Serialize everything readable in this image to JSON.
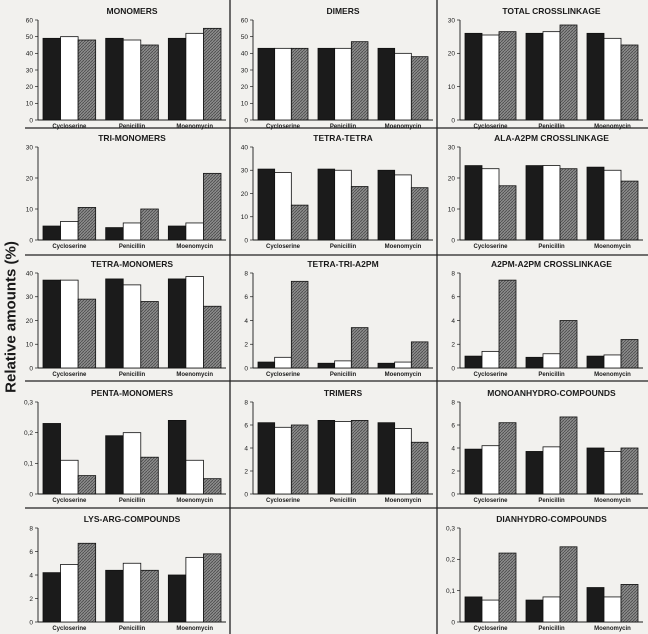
{
  "figure": {
    "ylabel": "Relative amounts (%)"
  },
  "colors": {
    "bar_dark": "#1b1b1b",
    "bar_light": "#ffffff",
    "bar_hatched": "#8c8c8c",
    "background": "#f2f1ee"
  },
  "chart_data": [
    {
      "type": "bar",
      "title": "MONOMERS",
      "categories": [
        "Cycloserine",
        "Penicillin",
        "Moenomycin"
      ],
      "yticks": [
        "0",
        "10",
        "20",
        "30",
        "40",
        "50",
        "60"
      ],
      "ylim": [
        0,
        60
      ],
      "series": [
        {
          "values": [
            49,
            49,
            49
          ]
        },
        {
          "values": [
            50,
            48,
            52
          ]
        },
        {
          "values": [
            48,
            45,
            55
          ]
        }
      ]
    },
    {
      "type": "bar",
      "title": "DIMERS",
      "categories": [
        "Cycloserine",
        "Penicillin",
        "Moenomycin"
      ],
      "yticks": [
        "0",
        "10",
        "20",
        "30",
        "40",
        "50",
        "60"
      ],
      "ylim": [
        0,
        60
      ],
      "series": [
        {
          "values": [
            43,
            43,
            43
          ]
        },
        {
          "values": [
            43,
            43,
            40
          ]
        },
        {
          "values": [
            43,
            47,
            38
          ]
        }
      ]
    },
    {
      "type": "bar",
      "title": "TOTAL CROSSLINKAGE",
      "categories": [
        "Cycloserine",
        "Penicillin",
        "Moenomycin"
      ],
      "yticks": [
        "0",
        "10",
        "20",
        "30"
      ],
      "ylim": [
        0,
        30
      ],
      "series": [
        {
          "values": [
            26,
            26,
            26
          ]
        },
        {
          "values": [
            25.5,
            26.5,
            24.5
          ]
        },
        {
          "values": [
            26.5,
            28.5,
            22.5
          ]
        }
      ]
    },
    {
      "type": "bar",
      "title": "TRI-MONOMERS",
      "categories": [
        "Cycloserine",
        "Penicillin",
        "Moenomycin"
      ],
      "yticks": [
        "0",
        "10",
        "20",
        "30"
      ],
      "ylim": [
        0,
        30
      ],
      "series": [
        {
          "values": [
            4.5,
            4,
            4.5
          ]
        },
        {
          "values": [
            6,
            5.5,
            5.5
          ]
        },
        {
          "values": [
            10.5,
            10,
            21.5
          ]
        }
      ]
    },
    {
      "type": "bar",
      "title": "TETRA-TETRA",
      "categories": [
        "Cycloserine",
        "Penicillin",
        "Moenomycin"
      ],
      "yticks": [
        "0",
        "10",
        "20",
        "30",
        "40"
      ],
      "ylim": [
        0,
        40
      ],
      "series": [
        {
          "values": [
            30.5,
            30.5,
            30
          ]
        },
        {
          "values": [
            29,
            30,
            28
          ]
        },
        {
          "values": [
            15,
            23,
            22.5
          ]
        }
      ]
    },
    {
      "type": "bar",
      "title": "ALA-A2PM CROSSLINKAGE",
      "categories": [
        "Cycloserine",
        "Penicillin",
        "Moenomycin"
      ],
      "yticks": [
        "0",
        "10",
        "20",
        "30"
      ],
      "ylim": [
        0,
        30
      ],
      "series": [
        {
          "values": [
            24,
            24,
            23.5
          ]
        },
        {
          "values": [
            23,
            24,
            22.5
          ]
        },
        {
          "values": [
            17.5,
            23,
            19
          ]
        }
      ]
    },
    {
      "type": "bar",
      "title": "TETRA-MONOMERS",
      "categories": [
        "Cycloserine",
        "Penicillin",
        "Moenomycin"
      ],
      "yticks": [
        "0",
        "10",
        "20",
        "30",
        "40"
      ],
      "ylim": [
        0,
        40
      ],
      "series": [
        {
          "values": [
            37,
            37.5,
            37.5
          ]
        },
        {
          "values": [
            37,
            35,
            38.5
          ]
        },
        {
          "values": [
            29,
            28,
            26
          ]
        }
      ]
    },
    {
      "type": "bar",
      "title": "TETRA-TRI-A2PM",
      "categories": [
        "Cycloserine",
        "Penicillin",
        "Moenomycin"
      ],
      "yticks": [
        "0",
        "2",
        "4",
        "6",
        "8"
      ],
      "ylim": [
        0,
        8
      ],
      "series": [
        {
          "values": [
            0.5,
            0.4,
            0.4
          ]
        },
        {
          "values": [
            0.9,
            0.6,
            0.5
          ]
        },
        {
          "values": [
            7.3,
            3.4,
            2.2
          ]
        }
      ]
    },
    {
      "type": "bar",
      "title": "A2PM-A2PM CROSSLINKAGE",
      "categories": [
        "Cycloserine",
        "Penicillin",
        "Moenomycin"
      ],
      "yticks": [
        "0",
        "2",
        "4",
        "6",
        "8"
      ],
      "ylim": [
        0,
        8
      ],
      "series": [
        {
          "values": [
            1,
            0.9,
            1
          ]
        },
        {
          "values": [
            1.4,
            1.2,
            1.1
          ]
        },
        {
          "values": [
            7.4,
            4,
            2.4
          ]
        }
      ]
    },
    {
      "type": "bar",
      "title": "PENTA-MONOMERS",
      "categories": [
        "Cycloserine",
        "Penicillin",
        "Moenomycin"
      ],
      "yticks": [
        "0",
        "0,1",
        "0,2",
        "0,3"
      ],
      "ylim": [
        0,
        0.3
      ],
      "series": [
        {
          "values": [
            0.23,
            0.19,
            0.24
          ]
        },
        {
          "values": [
            0.11,
            0.2,
            0.11
          ]
        },
        {
          "values": [
            0.06,
            0.12,
            0.05
          ]
        }
      ]
    },
    {
      "type": "bar",
      "title": "TRIMERS",
      "categories": [
        "Cycloserine",
        "Penicillin",
        "Moenomycin"
      ],
      "yticks": [
        "0",
        "2",
        "4",
        "6",
        "8"
      ],
      "ylim": [
        0,
        8
      ],
      "series": [
        {
          "values": [
            6.2,
            6.4,
            6.2
          ]
        },
        {
          "values": [
            5.8,
            6.3,
            5.7
          ]
        },
        {
          "values": [
            6,
            6.4,
            4.5
          ]
        }
      ]
    },
    {
      "type": "bar",
      "title": "MONOANHYDRO-COMPOUNDS",
      "categories": [
        "Cycloserine",
        "Penicillin",
        "Moenomycin"
      ],
      "yticks": [
        "0",
        "2",
        "4",
        "6",
        "8"
      ],
      "ylim": [
        0,
        8
      ],
      "series": [
        {
          "values": [
            3.9,
            3.7,
            4
          ]
        },
        {
          "values": [
            4.2,
            4.1,
            3.7
          ]
        },
        {
          "values": [
            6.2,
            6.7,
            4
          ]
        }
      ]
    },
    {
      "type": "bar",
      "title": "LYS-ARG-COMPOUNDS",
      "categories": [
        "Cycloserine",
        "Penicillin",
        "Moenomycin"
      ],
      "yticks": [
        "0",
        "2",
        "4",
        "6",
        "8"
      ],
      "ylim": [
        0,
        8
      ],
      "series": [
        {
          "values": [
            4.2,
            4.4,
            4
          ]
        },
        {
          "values": [
            4.9,
            5,
            5.5
          ]
        },
        {
          "values": [
            6.7,
            4.4,
            5.8
          ]
        }
      ]
    },
    null,
    {
      "type": "bar",
      "title": "DIANHYDRO-COMPOUNDS",
      "categories": [
        "Cycloserine",
        "Penicillin",
        "Moenomycin"
      ],
      "yticks": [
        "0",
        "0,1",
        "0,2",
        "0,3"
      ],
      "ylim": [
        0,
        0.3
      ],
      "series": [
        {
          "values": [
            0.08,
            0.07,
            0.11
          ]
        },
        {
          "values": [
            0.07,
            0.08,
            0.08
          ]
        },
        {
          "values": [
            0.22,
            0.24,
            0.12
          ]
        }
      ]
    }
  ]
}
